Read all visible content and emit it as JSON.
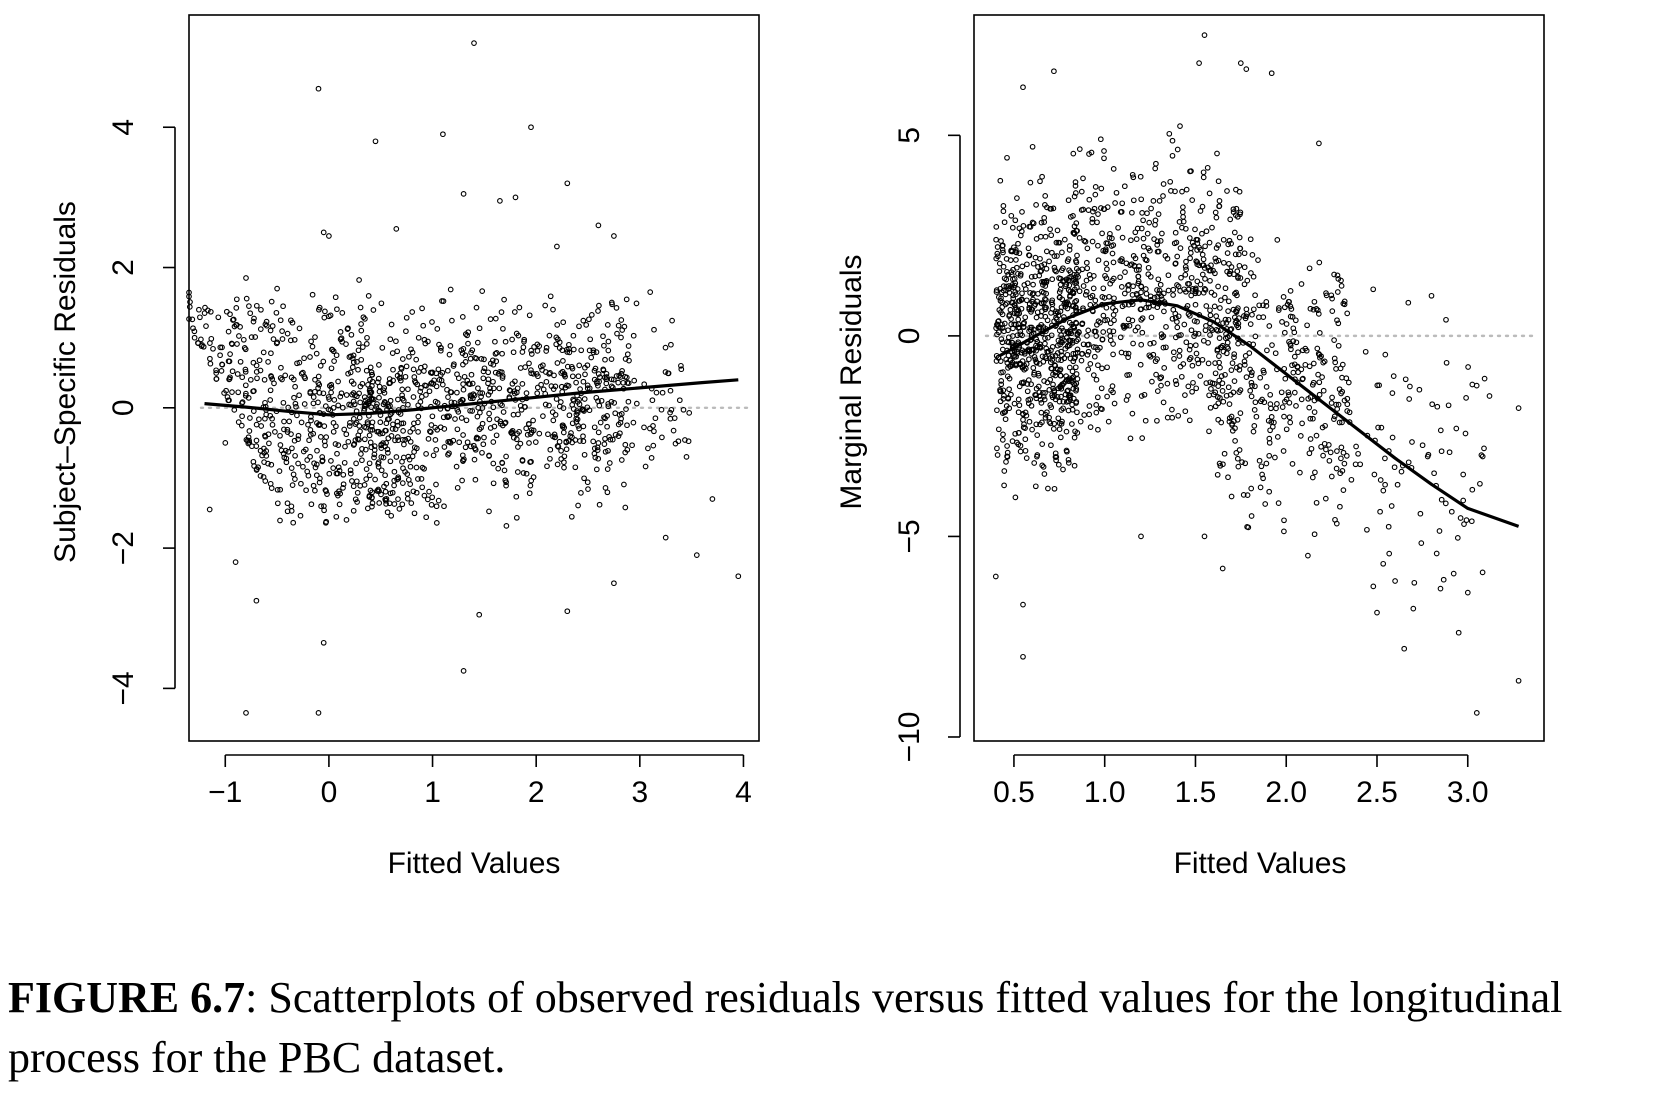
{
  "caption": {
    "label": "FIGURE 6.7",
    "text": ": Scatterplots of observed residuals versus fitted values for the longitudinal process for the PBC dataset."
  },
  "chart_data": [
    {
      "type": "scatter",
      "xlabel": "Fitted Values",
      "ylabel": "Subject–Specific Residuals",
      "xlim": [
        -1.35,
        4.15
      ],
      "ylim": [
        -4.75,
        5.6
      ],
      "xticks": [
        -1,
        0,
        1,
        2,
        3,
        4
      ],
      "xtick_labels": [
        "−1",
        "0",
        "1",
        "2",
        "3",
        "4"
      ],
      "yticks": [
        -4,
        -2,
        0,
        2,
        4
      ],
      "ytick_labels": [
        "−4",
        "−2",
        "0",
        "2",
        "4"
      ],
      "grid": false,
      "reference_line_y": 0,
      "point_color": "#000000",
      "smooth_color": "#000000",
      "reference_color": "#bbbbbb",
      "smooth": {
        "x": [
          -1.2,
          -0.8,
          -0.4,
          0.0,
          0.4,
          0.8,
          1.2,
          1.6,
          2.0,
          2.4,
          2.8,
          3.2,
          3.6,
          3.95
        ],
        "y": [
          0.06,
          0.01,
          -0.05,
          -0.1,
          -0.08,
          -0.03,
          0.03,
          0.09,
          0.15,
          0.21,
          0.26,
          0.31,
          0.36,
          0.4
        ]
      },
      "outliers": [
        [
          1.4,
          5.2
        ],
        [
          -0.1,
          4.55
        ],
        [
          1.1,
          3.9
        ],
        [
          1.95,
          4.0
        ],
        [
          0.45,
          3.8
        ],
        [
          2.3,
          3.2
        ],
        [
          1.3,
          3.05
        ],
        [
          1.8,
          3.0
        ],
        [
          1.65,
          2.95
        ],
        [
          0.0,
          2.45
        ],
        [
          -0.05,
          2.5
        ],
        [
          -0.8,
          1.85
        ],
        [
          -0.5,
          1.7
        ],
        [
          -1.05,
          0.75
        ],
        [
          -1.15,
          -1.45
        ],
        [
          -1.0,
          -0.5
        ],
        [
          -0.9,
          -2.2
        ],
        [
          -0.7,
          -2.75
        ],
        [
          -0.8,
          -4.35
        ],
        [
          -0.1,
          -4.35
        ],
        [
          -0.05,
          -3.35
        ],
        [
          1.3,
          -3.75
        ],
        [
          1.45,
          -2.95
        ],
        [
          2.3,
          -2.9
        ],
        [
          2.75,
          -2.5
        ],
        [
          3.25,
          -1.85
        ],
        [
          3.55,
          -2.1
        ],
        [
          3.95,
          -2.4
        ],
        [
          3.7,
          -1.3
        ],
        [
          3.45,
          -0.7
        ],
        [
          3.4,
          0.55
        ],
        [
          3.3,
          0.9
        ],
        [
          2.6,
          2.6
        ],
        [
          2.75,
          2.45
        ],
        [
          3.1,
          1.65
        ],
        [
          2.2,
          2.3
        ],
        [
          0.65,
          2.55
        ]
      ],
      "cloud": [
        {
          "x_min": -0.95,
          "x_max": 0.55,
          "y_min": -1.6,
          "y_max": 1.5,
          "count": 520,
          "striped": true,
          "seed": 11
        },
        {
          "x_min": 0.2,
          "x_max": 2.9,
          "y_min": -1.9,
          "y_max": 2.1,
          "count": 720,
          "striped": false,
          "seed": 23
        },
        {
          "x_min": 2.3,
          "x_max": 3.5,
          "y_min": -1.3,
          "y_max": 1.6,
          "count": 90,
          "striped": false,
          "seed": 37
        }
      ]
    },
    {
      "type": "scatter",
      "xlabel": "Fitted Values",
      "ylabel": "Marginal Residuals",
      "xlim": [
        0.28,
        3.42
      ],
      "ylim": [
        -10.1,
        8.0
      ],
      "xticks": [
        0.5,
        1.0,
        1.5,
        2.0,
        2.5,
        3.0
      ],
      "xtick_labels": [
        "0.5",
        "1.0",
        "1.5",
        "2.0",
        "2.5",
        "3.0"
      ],
      "yticks": [
        -10,
        -5,
        0,
        5
      ],
      "ytick_labels": [
        "−10",
        "−5",
        "0",
        "5"
      ],
      "grid": false,
      "reference_line_y": 0,
      "point_color": "#000000",
      "smooth_color": "#000000",
      "reference_color": "#bbbbbb",
      "smooth": {
        "x": [
          0.42,
          0.6,
          0.8,
          1.0,
          1.2,
          1.4,
          1.6,
          1.8,
          2.0,
          2.2,
          2.4,
          2.6,
          2.8,
          3.0,
          3.28
        ],
        "y": [
          -0.5,
          -0.05,
          0.45,
          0.8,
          0.9,
          0.75,
          0.35,
          -0.25,
          -0.95,
          -1.65,
          -2.35,
          -3.05,
          -3.7,
          -4.3,
          -4.75
        ]
      },
      "outliers": [
        [
          1.55,
          7.5
        ],
        [
          1.75,
          6.8
        ],
        [
          1.78,
          6.65
        ],
        [
          1.92,
          6.55
        ],
        [
          0.72,
          6.6
        ],
        [
          0.55,
          6.2
        ],
        [
          1.52,
          6.8
        ],
        [
          0.55,
          -8.0
        ],
        [
          0.4,
          -6.0
        ],
        [
          0.55,
          -6.7
        ],
        [
          3.28,
          -8.6
        ],
        [
          3.05,
          -9.4
        ],
        [
          3.12,
          -1.5
        ],
        [
          3.28,
          -1.8
        ],
        [
          3.0,
          -6.4
        ],
        [
          2.95,
          -7.4
        ],
        [
          2.65,
          -7.8
        ],
        [
          2.7,
          -6.8
        ],
        [
          2.85,
          -6.3
        ],
        [
          2.5,
          -6.9
        ],
        [
          2.8,
          1.0
        ],
        [
          2.88,
          0.4
        ],
        [
          2.9,
          -2.9
        ],
        [
          1.2,
          -5.0
        ],
        [
          1.55,
          -5.0
        ],
        [
          1.65,
          -5.8
        ],
        [
          2.18,
          4.8
        ]
      ],
      "cloud": [
        {
          "x_min": 0.4,
          "x_max": 0.85,
          "y_min": -5.0,
          "y_max": 5.0,
          "count": 680,
          "striped": false,
          "seed": 5
        },
        {
          "x_min": 0.8,
          "x_max": 1.75,
          "y_min": -3.8,
          "y_max": 5.9,
          "count": 640,
          "striped": false,
          "seed": 17
        },
        {
          "x_min": 1.6,
          "x_max": 2.35,
          "y_min": -5.6,
          "y_max": 3.4,
          "count": 330,
          "striped": false,
          "seed": 29
        },
        {
          "x_min": 2.3,
          "x_max": 3.1,
          "y_min": -7.6,
          "y_max": 1.6,
          "count": 90,
          "striped": false,
          "seed": 41
        }
      ]
    }
  ]
}
